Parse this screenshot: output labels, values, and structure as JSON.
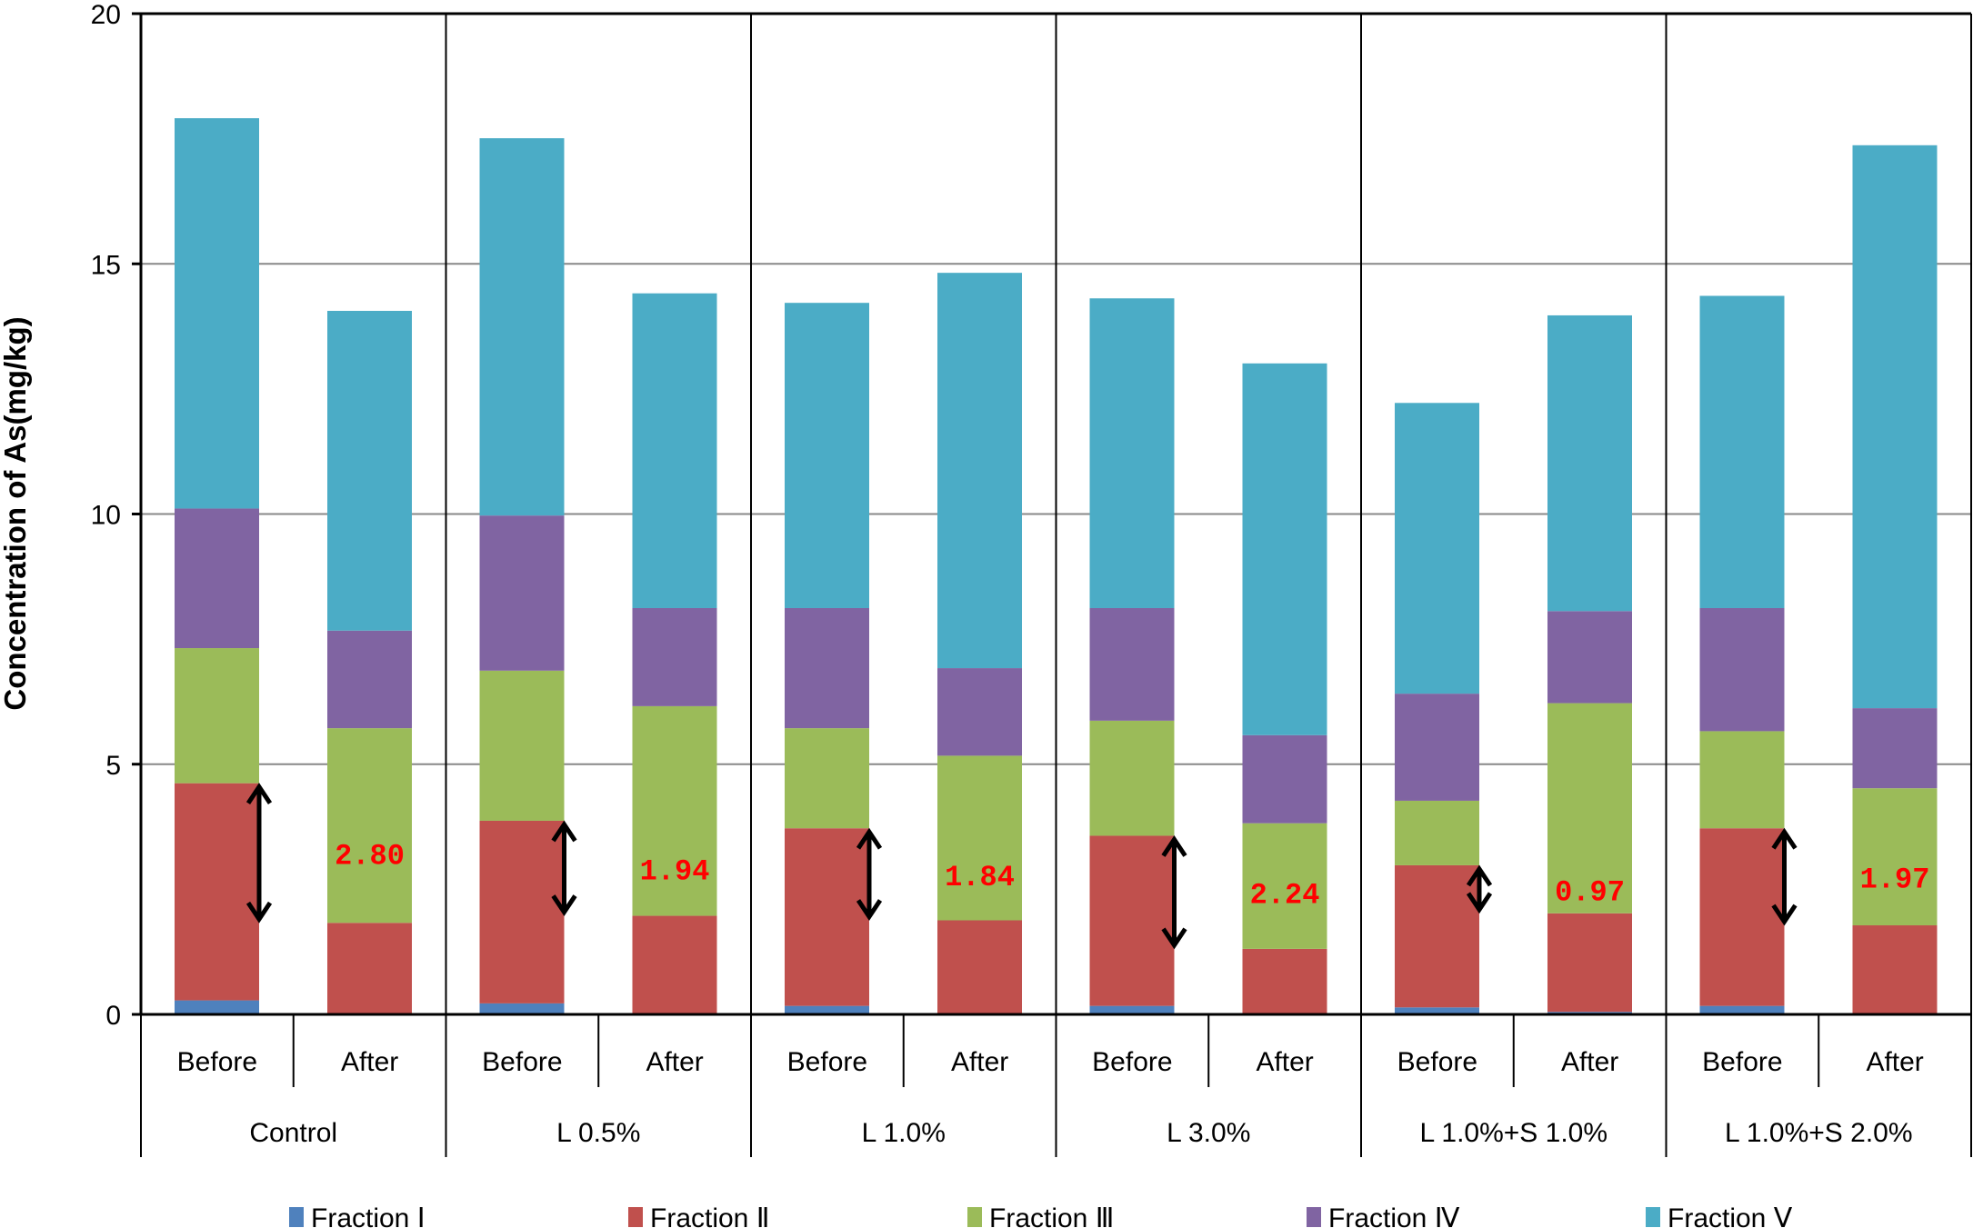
{
  "chart_data": {
    "type": "bar",
    "stacked": true,
    "title": "",
    "xlabel": "",
    "ylabel": "Concentration of As(mg/kg)",
    "ylim": [
      0,
      20
    ],
    "yticks": [
      0,
      5,
      10,
      15,
      20
    ],
    "grid": true,
    "legend_position": "bottom",
    "groups": [
      "Control",
      "L 0.5%",
      "L 1.0%",
      "L 3.0%",
      "L 1.0%+S 1.0%",
      "L 1.0%+S 2.0%"
    ],
    "subcategories": [
      "Before",
      "After"
    ],
    "series": [
      {
        "name": "Fraction Ⅰ",
        "color": "#4f81bd",
        "values": [
          [
            0.28,
            0.0
          ],
          [
            0.22,
            0.0
          ],
          [
            0.17,
            0.0
          ],
          [
            0.17,
            0.0
          ],
          [
            0.14,
            0.05
          ],
          [
            0.17,
            0.0
          ]
        ]
      },
      {
        "name": "Fraction Ⅱ",
        "color": "#c0504d",
        "values": [
          [
            4.34,
            1.83
          ],
          [
            3.65,
            1.97
          ],
          [
            3.55,
            1.88
          ],
          [
            3.4,
            1.31
          ],
          [
            2.84,
            1.97
          ],
          [
            3.55,
            1.78
          ]
        ]
      },
      {
        "name": "Fraction Ⅲ",
        "color": "#9bbb59",
        "values": [
          [
            2.7,
            3.89
          ],
          [
            3.0,
            4.19
          ],
          [
            2.0,
            3.29
          ],
          [
            2.3,
            2.51
          ],
          [
            1.29,
            4.2
          ],
          [
            1.94,
            2.74
          ]
        ]
      },
      {
        "name": "Fraction Ⅳ",
        "color": "#8064a2",
        "values": [
          [
            2.79,
            1.95
          ],
          [
            3.1,
            1.96
          ],
          [
            2.4,
            1.75
          ],
          [
            2.25,
            1.76
          ],
          [
            2.14,
            1.84
          ],
          [
            2.46,
            1.6
          ]
        ]
      },
      {
        "name": "Fraction Ⅴ",
        "color": "#4bacc6",
        "values": [
          [
            7.8,
            6.39
          ],
          [
            7.54,
            6.29
          ],
          [
            6.1,
            7.9
          ],
          [
            6.19,
            7.43
          ],
          [
            5.81,
            5.91
          ],
          [
            6.24,
            11.25
          ]
        ]
      }
    ],
    "annotations": [
      {
        "group": "Control",
        "text": "2.80"
      },
      {
        "group": "L 0.5%",
        "text": "1.94"
      },
      {
        "group": "L 1.0%",
        "text": "1.84"
      },
      {
        "group": "L 3.0%",
        "text": "2.24"
      },
      {
        "group": "L 1.0%+S 1.0%",
        "text": "0.97"
      },
      {
        "group": "L 1.0%+S 2.0%",
        "text": "1.97"
      }
    ],
    "annotation_color": "#ff0000"
  }
}
